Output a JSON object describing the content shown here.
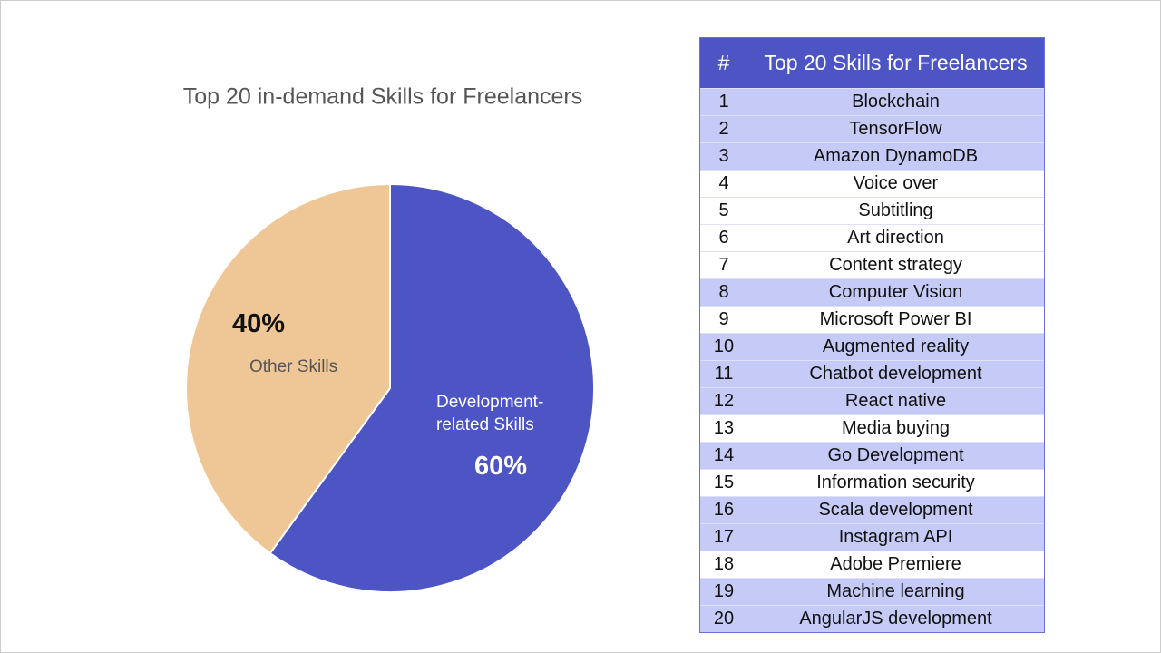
{
  "chart_data": {
    "type": "pie",
    "title": "Top 20 in-demand Skills for Freelancers",
    "categories": [
      "Development-related Skills",
      "Other Skills"
    ],
    "values": [
      60,
      40
    ],
    "value_labels": [
      "60%",
      "40%"
    ],
    "colors": [
      "#4d55c5",
      "#efc796"
    ],
    "start": "top",
    "direction": "clockwise"
  },
  "table": {
    "header": [
      "#",
      "Top 20 Skills for Freelancers"
    ],
    "rows": [
      {
        "rank": 1,
        "skill": "Blockchain",
        "highlight": true
      },
      {
        "rank": 2,
        "skill": "TensorFlow",
        "highlight": true
      },
      {
        "rank": 3,
        "skill": "Amazon DynamoDB",
        "highlight": true
      },
      {
        "rank": 4,
        "skill": "Voice over",
        "highlight": false
      },
      {
        "rank": 5,
        "skill": "Subtitling",
        "highlight": false
      },
      {
        "rank": 6,
        "skill": "Art direction",
        "highlight": false
      },
      {
        "rank": 7,
        "skill": "Content strategy",
        "highlight": false
      },
      {
        "rank": 8,
        "skill": "Computer Vision",
        "highlight": true
      },
      {
        "rank": 9,
        "skill": "Microsoft Power BI",
        "highlight": false
      },
      {
        "rank": 10,
        "skill": "Augmented reality",
        "highlight": true
      },
      {
        "rank": 11,
        "skill": "Chatbot development",
        "highlight": true
      },
      {
        "rank": 12,
        "skill": "React native",
        "highlight": true
      },
      {
        "rank": 13,
        "skill": "Media buying",
        "highlight": false
      },
      {
        "rank": 14,
        "skill": "Go Development",
        "highlight": true
      },
      {
        "rank": 15,
        "skill": "Information security",
        "highlight": false
      },
      {
        "rank": 16,
        "skill": "Scala development",
        "highlight": true
      },
      {
        "rank": 17,
        "skill": "Instagram API",
        "highlight": true
      },
      {
        "rank": 18,
        "skill": "Adobe Premiere",
        "highlight": false
      },
      {
        "rank": 19,
        "skill": "Machine learning",
        "highlight": true
      },
      {
        "rank": 20,
        "skill": "AngularJS development",
        "highlight": true
      }
    ]
  }
}
